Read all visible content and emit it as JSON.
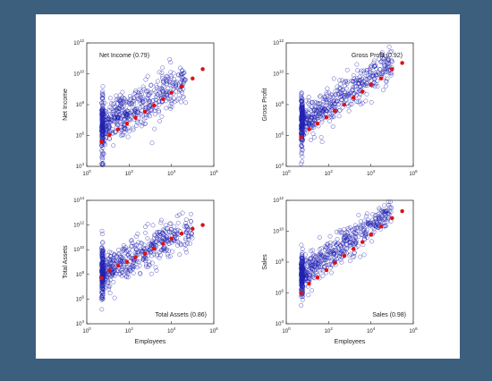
{
  "chart_data": [
    {
      "type": "scatter",
      "annotation": "Net Income (0.79)",
      "annotation_pos": "top-left",
      "ylabel": "Net Income",
      "xlabel": "",
      "scale": "log",
      "xlim": [
        1,
        1000000
      ],
      "ylim": [
        10000,
        1000000000000
      ],
      "x_ticks": [
        "10^0",
        "10^2",
        "10^4",
        "10^6"
      ],
      "y_ticks": [
        "10^4",
        "10^6",
        "10^8",
        "10^10",
        "10^12"
      ],
      "cloud": {
        "x_min": 5,
        "x_max": 50000,
        "slope": 0.79,
        "intercept": 5.9,
        "spread": 0.7
      },
      "binned_means": {
        "x": [
          5,
          12,
          30,
          80,
          200,
          550,
          1500,
          4000,
          10000,
          30000,
          100000,
          300000
        ],
        "y": [
          400000,
          1100000,
          2500000,
          6000000,
          14000000,
          35000000,
          90000000,
          230000000,
          600000000,
          1500000000,
          5000000000,
          20000000000
        ]
      }
    },
    {
      "type": "scatter",
      "annotation": "Gross Profit (0.92)",
      "annotation_pos": "top-right",
      "ylabel": "Gross Profit",
      "xlabel": "",
      "scale": "log",
      "xlim": [
        1,
        1000000
      ],
      "ylim": [
        10000,
        1000000000000
      ],
      "x_ticks": [
        "10^0",
        "10^2",
        "10^4",
        "10^6"
      ],
      "y_ticks": [
        "10^4",
        "10^6",
        "10^8",
        "10^10",
        "10^12"
      ],
      "cloud": {
        "x_min": 5,
        "x_max": 100000,
        "slope": 0.92,
        "intercept": 6.1,
        "spread": 0.55
      },
      "binned_means": {
        "x": [
          5,
          12,
          30,
          80,
          200,
          550,
          1500,
          4000,
          10000,
          30000,
          100000,
          300000
        ],
        "y": [
          800000,
          2500000,
          6000000,
          15000000,
          40000000,
          100000000,
          280000000,
          700000000,
          2000000000,
          5000000000,
          20000000000,
          50000000000
        ]
      }
    },
    {
      "type": "scatter",
      "annotation": "Total Assets (0.86)",
      "annotation_pos": "bottom-right",
      "ylabel": "Total Assets",
      "xlabel": "Employees",
      "scale": "log",
      "xlim": [
        1,
        1000000
      ],
      "ylim": [
        10000,
        100000000000000
      ],
      "x_ticks": [
        "10^0",
        "10^2",
        "10^4",
        "10^6"
      ],
      "y_ticks": [
        "10^4",
        "10^6",
        "10^8",
        "10^10",
        "10^12",
        "10^14"
      ],
      "cloud": {
        "x_min": 5,
        "x_max": 100000,
        "slope": 0.86,
        "intercept": 7.5,
        "spread": 0.75
      },
      "binned_means": {
        "x": [
          5,
          12,
          30,
          80,
          200,
          550,
          1500,
          4000,
          10000,
          30000,
          100000,
          300000
        ],
        "y": [
          50000000,
          200000000,
          500000000,
          1000000000,
          2500000000,
          5000000000,
          12000000000,
          30000000000,
          80000000000,
          200000000000,
          500000000000,
          1000000000000
        ]
      }
    },
    {
      "type": "scatter",
      "annotation": "Sales (0.98)",
      "annotation_pos": "bottom-right",
      "ylabel": "Sales",
      "xlabel": "Employees",
      "scale": "log",
      "xlim": [
        1,
        1000000
      ],
      "ylim": [
        10000,
        1000000000000
      ],
      "x_ticks": [
        "10^0",
        "10^2",
        "10^4",
        "10^6"
      ],
      "y_ticks": [
        "10^4",
        "10^6",
        "10^8",
        "10^10",
        "10^12"
      ],
      "cloud": {
        "x_min": 5,
        "x_max": 100000,
        "slope": 0.98,
        "intercept": 6.4,
        "spread": 0.5
      },
      "binned_means": {
        "x": [
          5,
          12,
          30,
          80,
          200,
          550,
          1500,
          4000,
          10000,
          30000,
          100000,
          300000
        ],
        "y": [
          1000000,
          4000000,
          10000000,
          30000000,
          90000000,
          250000000,
          700000000,
          2000000000,
          6000000000,
          20000000000,
          70000000000,
          200000000000
        ]
      }
    }
  ],
  "colors": {
    "scatter_marker": "#2020b0",
    "mean_marker": "#e01010",
    "frame": "#333333",
    "page_bg": "#3d5f7e",
    "card_bg": "#ffffff"
  }
}
